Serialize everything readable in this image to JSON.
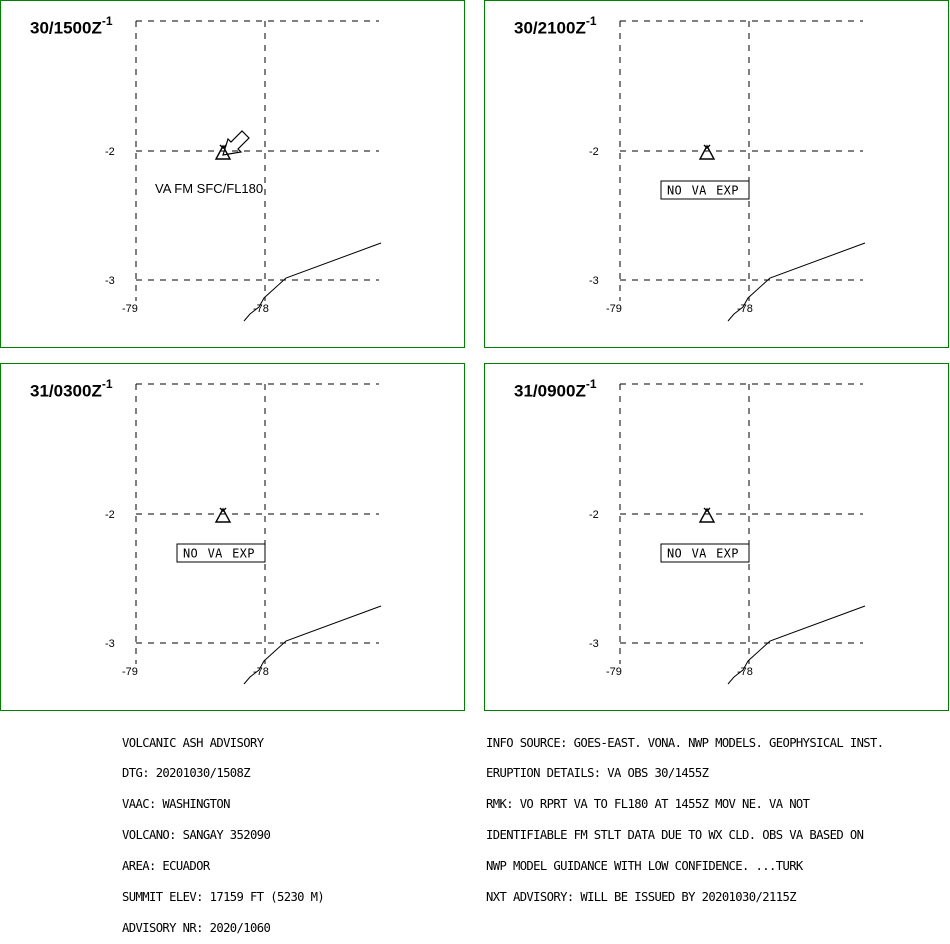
{
  "panels": [
    {
      "time": "30/1500Z",
      "sup": "-1",
      "label": "VA FM SFC/FL180",
      "label_style": "plain",
      "show_arrow": true,
      "ticks": {
        "lat_top": "-2",
        "lat_bottom": "-3",
        "lon_left": "-79",
        "lon_right": "-78"
      }
    },
    {
      "time": "30/2100Z",
      "sup": "-1",
      "label": "NO VA EXP",
      "label_style": "boxed",
      "show_arrow": false,
      "ticks": {
        "lat_top": "-2",
        "lat_bottom": "-3",
        "lon_left": "-79",
        "lon_right": "-78"
      }
    },
    {
      "time": "31/0300Z",
      "sup": "-1",
      "label": "NO VA EXP",
      "label_style": "boxed",
      "show_arrow": false,
      "ticks": {
        "lat_top": "-2",
        "lat_bottom": "-3",
        "lon_left": "-79",
        "lon_right": "-78"
      }
    },
    {
      "time": "31/0900Z",
      "sup": "-1",
      "label": "NO VA EXP",
      "label_style": "boxed",
      "show_arrow": false,
      "ticks": {
        "lat_top": "-2",
        "lat_bottom": "-3",
        "lon_left": "-79",
        "lon_right": "-78"
      }
    }
  ],
  "advisory": {
    "left_lines": [
      "VOLCANIC ASH ADVISORY",
      "DTG: 20201030/1508Z",
      "VAAC: WASHINGTON",
      "VOLCANO: SANGAY 352090",
      "AREA: ECUADOR",
      "SUMMIT ELEV: 17159 FT (5230 M)",
      "ADVISORY NR: 2020/1060"
    ],
    "right_lines": [
      "INFO SOURCE: GOES-EAST. VONA. NWP MODELS. GEOPHYSICAL INST.",
      "ERUPTION DETAILS: VA OBS 30/1455Z",
      "RMK: VO RPRT VA TO FL180 AT 1455Z MOV NE. VA NOT",
      "IDENTIFIABLE FM STLT DATA DUE TO WX CLD. OBS VA BASED ON",
      "NWP MODEL GUIDANCE WITH LOW CONFIDENCE. ...TURK",
      "NXT ADVISORY: WILL BE ISSUED BY 20201030/2115Z"
    ]
  },
  "colors": {
    "panel_border": "#008000",
    "ink": "#000000",
    "background": "#ffffff"
  },
  "icons": {
    "volcano": "volcano-triangle-icon",
    "ash_direction": "ash-direction-arrow-icon"
  }
}
